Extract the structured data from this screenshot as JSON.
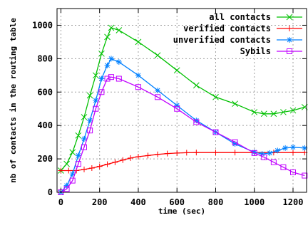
{
  "chart_data": {
    "type": "line",
    "xlabel": "time (sec)",
    "ylabel": "nb of contacts in the routing table",
    "xlim": [
      -20,
      1270
    ],
    "ylim": [
      0,
      1100
    ],
    "xticks": [
      "0",
      "200",
      "400",
      "600",
      "800",
      "1000",
      "1200"
    ],
    "yticks": [
      "0",
      "200",
      "400",
      "600",
      "800",
      "1000"
    ],
    "xtick_values": [
      0,
      200,
      400,
      600,
      800,
      1000,
      1200
    ],
    "ytick_values": [
      0,
      200,
      400,
      600,
      800,
      1000
    ],
    "grid": true,
    "legend_position": "top-right",
    "series": [
      {
        "name": "all contacts",
        "color": "#00c000",
        "marker": "x",
        "x": [
          0,
          30,
          60,
          90,
          120,
          150,
          180,
          210,
          240,
          260,
          300,
          400,
          500,
          600,
          700,
          800,
          900,
          1000,
          1050,
          1100,
          1150,
          1200,
          1260
        ],
        "y": [
          130,
          170,
          240,
          340,
          450,
          580,
          700,
          830,
          930,
          985,
          970,
          900,
          820,
          730,
          640,
          570,
          530,
          480,
          470,
          470,
          480,
          490,
          510
        ]
      },
      {
        "name": "verified contacts",
        "color": "#ff0000",
        "marker": "+",
        "x": [
          0,
          40,
          80,
          120,
          160,
          200,
          240,
          280,
          320,
          360,
          400,
          450,
          500,
          550,
          600,
          650,
          700,
          800,
          900,
          1000,
          1100,
          1200,
          1260
        ],
        "y": [
          130,
          130,
          130,
          137,
          145,
          155,
          168,
          180,
          193,
          205,
          213,
          220,
          227,
          232,
          235,
          237,
          238,
          238,
          238,
          238,
          238,
          238,
          238
        ]
      },
      {
        "name": "unverified contacts",
        "color": "#0080ff",
        "marker": "*",
        "x": [
          0,
          30,
          60,
          90,
          120,
          150,
          180,
          210,
          240,
          260,
          300,
          400,
          500,
          600,
          700,
          800,
          900,
          1000,
          1040,
          1080,
          1120,
          1160,
          1200,
          1260
        ],
        "y": [
          0,
          40,
          110,
          220,
          320,
          430,
          550,
          680,
          760,
          800,
          780,
          700,
          610,
          520,
          430,
          360,
          290,
          240,
          230,
          235,
          250,
          265,
          270,
          265
        ]
      },
      {
        "name": "Sybils",
        "color": "#c000ff",
        "marker": "square",
        "x": [
          0,
          30,
          60,
          90,
          120,
          150,
          180,
          210,
          240,
          260,
          300,
          400,
          500,
          600,
          700,
          800,
          900,
          1000,
          1050,
          1100,
          1150,
          1200,
          1260
        ],
        "y": [
          0,
          20,
          70,
          170,
          270,
          370,
          500,
          600,
          680,
          690,
          680,
          630,
          570,
          500,
          420,
          360,
          300,
          235,
          210,
          180,
          150,
          120,
          100
        ]
      }
    ]
  }
}
